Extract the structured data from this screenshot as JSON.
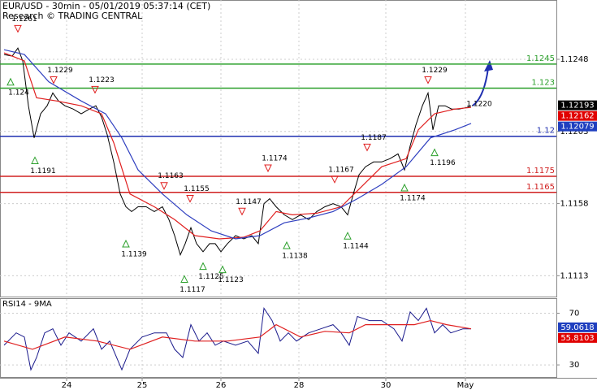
{
  "chart_data": [
    {
      "type": "line",
      "title": "EUR/USD - 30min - 05/01/2019 05:37:14 (CET)",
      "subtitle": "Research © TRADING CENTRAL",
      "xlim": [
        0,
        685
      ],
      "xticks": [
        {
          "value": 82,
          "label": "24"
        },
        {
          "value": 175,
          "label": "25"
        },
        {
          "value": 272,
          "label": "26"
        },
        {
          "value": 368,
          "label": "28"
        },
        {
          "value": 475,
          "label": "30"
        },
        {
          "value": 573,
          "label": "May"
        }
      ],
      "ylim": [
        1.11,
        1.1285
      ],
      "yticks": [
        1.1248,
        1.1203,
        1.1158,
        1.1113
      ],
      "grid": true,
      "series": [
        {
          "color": "#000000",
          "x": [
            5,
            15,
            22,
            28,
            35,
            42,
            50,
            58,
            65,
            72,
            80,
            90,
            100,
            110,
            118,
            125,
            132,
            140,
            148,
            155,
            162,
            170,
            180,
            190,
            200,
            208,
            215,
            222,
            228,
            235,
            242,
            250,
            258,
            265,
            272,
            280,
            290,
            300,
            310,
            318,
            325,
            332,
            340,
            350,
            360,
            370,
            380,
            390,
            400,
            410,
            420,
            428,
            435,
            442,
            450,
            460,
            470,
            480,
            490,
            498,
            505,
            512,
            520,
            527,
            533,
            540,
            548,
            556,
            565,
            575,
            580
          ],
          "values": [
            1.1251,
            1.125,
            1.1255,
            1.1247,
            1.1219,
            1.1199,
            1.1214,
            1.1219,
            1.1227,
            1.1222,
            1.1219,
            1.1217,
            1.1214,
            1.1217,
            1.1219,
            1.1212,
            1.1201,
            1.1184,
            1.1164,
            1.1156,
            1.1153,
            1.1156,
            1.1156,
            1.1153,
            1.1156,
            1.1148,
            1.1138,
            1.1126,
            1.1133,
            1.1143,
            1.1133,
            1.1128,
            1.1133,
            1.1133,
            1.1128,
            1.1133,
            1.1138,
            1.1136,
            1.1138,
            1.1133,
            1.1158,
            1.1161,
            1.1156,
            1.1151,
            1.1148,
            1.1151,
            1.1148,
            1.1153,
            1.1156,
            1.1158,
            1.1156,
            1.1151,
            1.1164,
            1.1176,
            1.1181,
            1.1184,
            1.1184,
            1.1186,
            1.1189,
            1.1179,
            1.1194,
            1.1207,
            1.1219,
            1.1227,
            1.1204,
            1.1219,
            1.1219,
            1.1217,
            1.1217,
            1.1218,
            1.1219
          ]
        },
        {
          "color": "#e02020",
          "x": [
            5,
            30,
            45,
            70,
            100,
            125,
            140,
            160,
            190,
            215,
            240,
            270,
            300,
            320,
            340,
            360,
            390,
            420,
            440,
            470,
            500,
            515,
            535,
            560,
            580
          ],
          "values": [
            1.1252,
            1.1247,
            1.1224,
            1.1222,
            1.1219,
            1.1214,
            1.1196,
            1.1164,
            1.1156,
            1.1148,
            1.1138,
            1.1136,
            1.1137,
            1.1141,
            1.1153,
            1.1151,
            1.1152,
            1.1156,
            1.1166,
            1.1181,
            1.1186,
            1.1204,
            1.1214,
            1.1217,
            1.1218
          ]
        },
        {
          "color": "#3040c0",
          "x": [
            5,
            30,
            60,
            100,
            130,
            150,
            170,
            200,
            230,
            260,
            290,
            320,
            350,
            380,
            410,
            440,
            470,
            500,
            530,
            560,
            580
          ],
          "values": [
            1.1254,
            1.1251,
            1.1234,
            1.1222,
            1.1214,
            1.1199,
            1.1179,
            1.1164,
            1.1151,
            1.1141,
            1.1136,
            1.1138,
            1.1146,
            1.1149,
            1.1153,
            1.1161,
            1.117,
            1.1181,
            1.1199,
            1.1204,
            1.1208
          ]
        }
      ],
      "levels": [
        {
          "value": 1.1245,
          "color": "#2ca02c"
        },
        {
          "value": 1.123,
          "color": "#2ca02c"
        },
        {
          "value": 1.12,
          "color": "#1f2fb0"
        },
        {
          "value": 1.1175,
          "color": "#d02020"
        },
        {
          "value": 1.1165,
          "color": "#d02020"
        }
      ],
      "price_tags": [
        {
          "value": 1.12193,
          "color": "#000000"
        },
        {
          "value": 1.12162,
          "color": "#e00000"
        },
        {
          "value": 1.12079,
          "color": "#1f3fbf"
        }
      ],
      "annotations": [
        {
          "value": 1.1261,
          "x": 22,
          "direction": "down"
        },
        {
          "value": 1.1229,
          "x": 66,
          "direction": "down"
        },
        {
          "value": 1.1223,
          "x": 117,
          "direction": "down"
        },
        {
          "value": 1.1163,
          "x": 202,
          "direction": "down"
        },
        {
          "value": 1.1155,
          "x": 234,
          "direction": "down"
        },
        {
          "value": 1.1147,
          "x": 298,
          "direction": "down"
        },
        {
          "value": 1.1174,
          "x": 330,
          "direction": "down"
        },
        {
          "value": 1.1167,
          "x": 412,
          "direction": "down"
        },
        {
          "value": 1.1187,
          "x": 452,
          "direction": "down"
        },
        {
          "value": 1.1229,
          "x": 527,
          "direction": "down"
        },
        {
          "value": 1.124,
          "x": 13,
          "direction": "up"
        },
        {
          "value": 1.1191,
          "x": 43,
          "direction": "up"
        },
        {
          "value": 1.1139,
          "x": 155,
          "direction": "up"
        },
        {
          "value": 1.1117,
          "x": 227,
          "direction": "up"
        },
        {
          "value": 1.1125,
          "x": 250,
          "direction": "up"
        },
        {
          "value": 1.1123,
          "x": 274,
          "direction": "up"
        },
        {
          "value": 1.1138,
          "x": 353,
          "direction": "up"
        },
        {
          "value": 1.1144,
          "x": 428,
          "direction": "up"
        },
        {
          "value": 1.1174,
          "x": 498,
          "direction": "up"
        },
        {
          "value": 1.1196,
          "x": 535,
          "direction": "up"
        },
        {
          "value": 1.122,
          "label": "1.1220",
          "x": 590,
          "direction": "none"
        }
      ]
    },
    {
      "type": "line",
      "title": "RSI14 - 9MA",
      "xlim": [
        0,
        685
      ],
      "ylim": [
        20,
        81
      ],
      "yticks": [
        70,
        30
      ],
      "series": [
        {
          "color": "#1a1a8c",
          "x": [
            5,
            20,
            30,
            38,
            45,
            55,
            65,
            75,
            85,
            100,
            115,
            125,
            135,
            150,
            160,
            175,
            190,
            205,
            215,
            225,
            235,
            245,
            255,
            265,
            275,
            290,
            305,
            318,
            325,
            335,
            345,
            355,
            365,
            380,
            395,
            410,
            420,
            430,
            440,
            455,
            470,
            485,
            495,
            505,
            515,
            525,
            535,
            545,
            555,
            570,
            580
          ],
          "values": [
            45.2,
            54.8,
            51.6,
            26.2,
            35.7,
            54.8,
            57.9,
            45.2,
            54.8,
            48.4,
            57.9,
            42.1,
            48.4,
            26.2,
            42.1,
            51.6,
            54.8,
            54.8,
            42.1,
            35.7,
            61.1,
            48.4,
            54.8,
            45.2,
            48.4,
            45.2,
            48.4,
            38.9,
            73.8,
            64.3,
            48.4,
            54.8,
            48.4,
            54.8,
            57.9,
            61.1,
            54.8,
            45.2,
            67.5,
            64.3,
            64.3,
            57.9,
            48.4,
            71.0,
            64.3,
            73.8,
            54.8,
            61.1,
            54.8,
            57.9,
            57.9
          ]
        },
        {
          "color": "#e02020",
          "x": [
            5,
            40,
            80,
            120,
            160,
            200,
            240,
            280,
            320,
            340,
            370,
            400,
            430,
            450,
            480,
            510,
            530,
            550,
            580
          ],
          "values": [
            48.4,
            42.1,
            51.6,
            48.4,
            42.1,
            51.6,
            48.4,
            48.4,
            51.6,
            61.1,
            51.6,
            56.0,
            54.8,
            61.1,
            61.1,
            61.1,
            64.3,
            61.1,
            57.9
          ]
        }
      ],
      "price_tags": [
        {
          "value": 59.0618,
          "color": "#1f3fbf"
        },
        {
          "value": 55.8103,
          "color": "#e00000"
        }
      ]
    }
  ]
}
